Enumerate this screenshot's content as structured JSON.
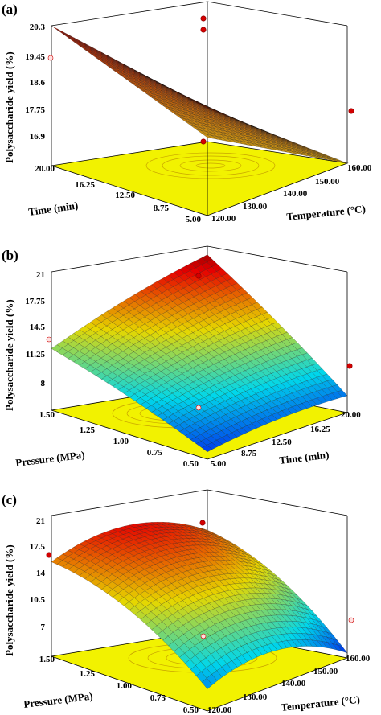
{
  "chart_data": [
    {
      "type": "surface",
      "panel_label": "(a)",
      "xlabel": "Temperature (°C)",
      "ylabel": "Time (min)",
      "zlabel": "Polysaccharide yield (%)",
      "x_ticks": [
        "120.00",
        "130.00",
        "140.00",
        "150.00",
        "160.00"
      ],
      "y_ticks": [
        "5.00",
        "8.75",
        "12.50",
        "16.25",
        "20.00"
      ],
      "z_ticks": [
        "16.9",
        "17.75",
        "18.6",
        "19.45",
        "20.3"
      ],
      "xlim": [
        120,
        160
      ],
      "ylim": [
        5,
        20
      ],
      "zlim": [
        16.9,
        20.3
      ],
      "surface_corners": {
        "x120_y20": 20.3,
        "x120_y5": 19.5,
        "x160_y20": 17.0,
        "x160_y5": 16.9
      },
      "design_points": [
        {
          "x": 160,
          "y": 5,
          "z": 17.8
        },
        {
          "x": 140,
          "y": 12.5,
          "z": 16.95
        },
        {
          "x": 120,
          "y": 5,
          "z": 19.4
        },
        {
          "x": 140,
          "y": 12.5,
          "z": 20.9
        },
        {
          "x": 140,
          "y": 12.5,
          "z": 21.2
        }
      ],
      "colormap": "orange-red",
      "floor_color": "#f2f200"
    },
    {
      "type": "surface",
      "panel_label": "(b)",
      "xlabel": "Time (min)",
      "ylabel": "Pressure (MPa)",
      "zlabel": "Polysaccharide yield (%)",
      "x_ticks": [
        "5.00",
        "8.75",
        "12.50",
        "16.25",
        "20.00"
      ],
      "y_ticks": [
        "0.50",
        "0.75",
        "1.00",
        "1.25",
        "1.50"
      ],
      "z_ticks": [
        "8",
        "11.25",
        "14.5",
        "17.75",
        "21"
      ],
      "xlim": [
        5,
        20
      ],
      "ylim": [
        0.5,
        1.5
      ],
      "zlim": [
        8,
        21
      ],
      "surface_corners": {
        "x5_y1.5": 13.8,
        "x5_y0.5": 8.6,
        "x20_y1.5": 20.2,
        "x20_y0.5": 9.5
      },
      "design_points": [
        {
          "x": 5,
          "y": 1.5,
          "z": 13.5
        },
        {
          "x": 20,
          "y": 0.5,
          "z": 9.6
        },
        {
          "x": 12.5,
          "y": 1.0,
          "z": 20.3
        },
        {
          "x": 12.5,
          "y": 1.0,
          "z": 7.8
        }
      ],
      "colormap": "jet",
      "floor_color": "#f2f200"
    },
    {
      "type": "surface",
      "panel_label": "(c)",
      "xlabel": "Temperature (°C)",
      "ylabel": "Pressure (MPa)",
      "zlabel": "Polysaccharide yield (%)",
      "x_ticks": [
        "120.00",
        "130.00",
        "140.00",
        "150.00",
        "160.00"
      ],
      "y_ticks": [
        "0.50",
        "0.75",
        "1.00",
        "1.25",
        "1.50"
      ],
      "z_ticks": [
        "7",
        "10.5",
        "14",
        "17.5",
        "21"
      ],
      "xlim": [
        120,
        160
      ],
      "ylim": [
        0.5,
        1.5
      ],
      "zlim": [
        7,
        21
      ],
      "surface_corners": {
        "x120_y1.5": 16.2,
        "x120_y0.5": 9.0,
        "x160_y1.5": 16.8,
        "x160_y0.5": 7.3
      },
      "design_points": [
        {
          "x": 120,
          "y": 1.5,
          "z": 16.3
        },
        {
          "x": 160,
          "y": 0.5,
          "z": 7.2
        },
        {
          "x": 140,
          "y": 1.0,
          "z": 20.6
        },
        {
          "x": 140,
          "y": 1.0,
          "z": 6.9
        }
      ],
      "colormap": "jet",
      "floor_color": "#f2f200"
    }
  ]
}
